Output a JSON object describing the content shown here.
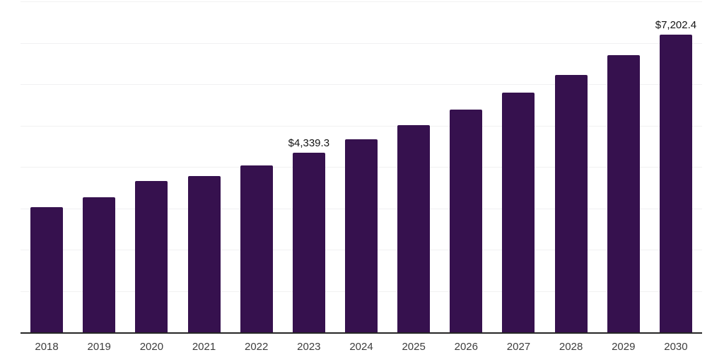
{
  "chart_data": {
    "type": "bar",
    "title": "",
    "xlabel": "",
    "ylabel": "",
    "categories": [
      "2018",
      "2019",
      "2020",
      "2021",
      "2022",
      "2023",
      "2024",
      "2025",
      "2026",
      "2027",
      "2028",
      "2029",
      "2030"
    ],
    "values": [
      3030,
      3265,
      3650,
      3785,
      4040,
      4339.3,
      4665,
      5015,
      5390,
      5795,
      6230,
      6700,
      7202.4
    ],
    "data_labels": {
      "2023": "$4,339.3",
      "2030": "$7,202.4"
    },
    "ylim": [
      0,
      8000
    ],
    "gridline_interval": 1000,
    "grid": true,
    "legend": false,
    "y_axis_tick_labels_visible": false,
    "colors": {
      "bar": "#36114E",
      "gridline": "#F1F1F2",
      "axis_line": "#262626",
      "tick_label": "#3D3D3D",
      "data_label": "#141414",
      "background": "#FFFFFF"
    }
  }
}
